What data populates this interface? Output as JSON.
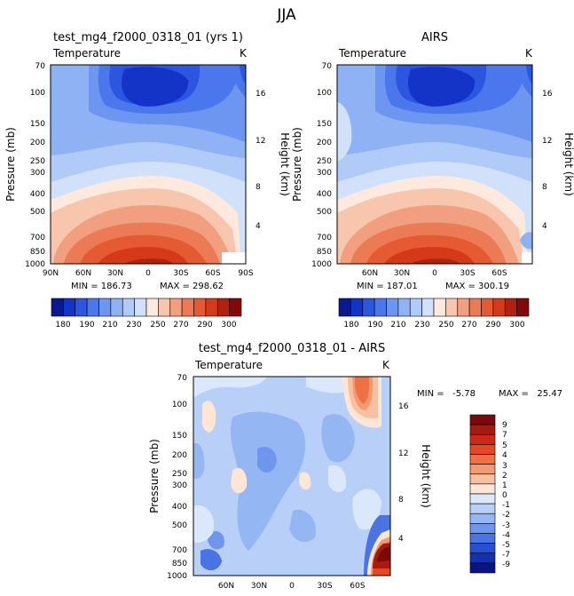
{
  "page_title": "JJA",
  "chart_data": [
    {
      "type": "heatmap",
      "title": "test_mg4_f2000_0318_01 (yrs 1)",
      "subtitle_left": "Temperature",
      "subtitle_right": "K",
      "ylabel": "Pressure (mb)",
      "ylabel_right": "Height (km)",
      "x_ticks": [
        "90N",
        "60N",
        "30N",
        "0",
        "30S",
        "60S",
        "90S"
      ],
      "y_ticks": [
        "70",
        "100",
        "150",
        "200",
        "250",
        "300",
        "400",
        "500",
        "700",
        "850",
        "1000"
      ],
      "height_ticks": [
        "16",
        "12",
        "8",
        "4"
      ],
      "stats": {
        "min_label": "MIN = 186.73",
        "max_label": "MAX = 298.62"
      },
      "colorbar_labels": [
        "180",
        "190",
        "210",
        "230",
        "250",
        "270",
        "290",
        "300"
      ],
      "colorbar_colors": [
        "#0a1a8c",
        "#1434c8",
        "#2a56e0",
        "#4a78ec",
        "#6c96f0",
        "#8eb2f4",
        "#b0cbf7",
        "#d2e1fa",
        "#fde9dd",
        "#f8c6ad",
        "#f29f7f",
        "#ec7a55",
        "#e55a33",
        "#d43a1a",
        "#b22010",
        "#840808"
      ]
    },
    {
      "type": "heatmap",
      "title": "AIRS",
      "subtitle_left": "Temperature",
      "subtitle_right": "K",
      "ylabel": "Pressure (mb)",
      "ylabel_right": "Height (km)",
      "x_ticks": [
        "60N",
        "30N",
        "0",
        "30S",
        "60S"
      ],
      "y_ticks": [
        "70",
        "100",
        "150",
        "200",
        "250",
        "300",
        "400",
        "500",
        "700",
        "850",
        "1000"
      ],
      "height_ticks": [
        "16",
        "12",
        "8",
        "4"
      ],
      "stats": {
        "min_label": "MIN = 187.01",
        "max_label": "MAX = 300.19"
      },
      "colorbar_labels": [
        "180",
        "190",
        "210",
        "230",
        "250",
        "270",
        "290",
        "300"
      ]
    },
    {
      "type": "heatmap",
      "title": "test_mg4_f2000_0318_01 - AIRS",
      "subtitle_left": "Temperature",
      "subtitle_right": "K",
      "ylabel": "Pressure (mb)",
      "ylabel_right": "Height (km)",
      "x_ticks": [
        "60N",
        "30N",
        "0",
        "30S",
        "60S"
      ],
      "y_ticks": [
        "70",
        "100",
        "150",
        "200",
        "250",
        "300",
        "400",
        "500",
        "700",
        "850",
        "1000"
      ],
      "height_ticks": [
        "16",
        "12",
        "8",
        "4"
      ],
      "stats": {
        "min_label": "MIN =   -5.78",
        "max_label": "MAX =   25.47"
      },
      "colorbar_labels": [
        "9",
        "7",
        "5",
        "4",
        "3",
        "2",
        "1",
        "0",
        "-1",
        "-2",
        "-3",
        "-4",
        "-5",
        "-7",
        "-9"
      ],
      "colorbar_colors": [
        "#7a0a0a",
        "#a81a10",
        "#cc2a16",
        "#e24a26",
        "#ef7045",
        "#f49a70",
        "#f8c0a0",
        "#fde6d6",
        "#dbe8fb",
        "#b8d0f7",
        "#94b6f2",
        "#6e96ec",
        "#4a74e4",
        "#2a50d2",
        "#1430ac",
        "#0a1480"
      ]
    }
  ]
}
